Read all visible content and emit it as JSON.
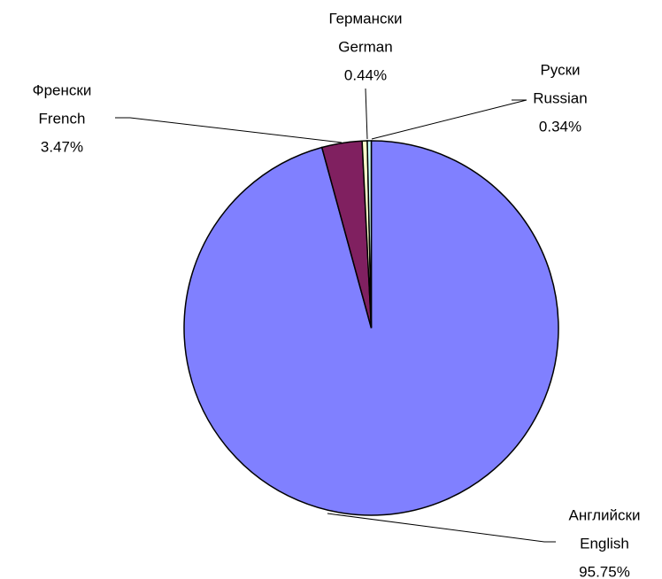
{
  "chart_data": {
    "type": "pie",
    "categories": [
      "English",
      "French",
      "German",
      "Russian"
    ],
    "local_names": [
      "Английски",
      "Френски",
      "Германски",
      "Руски"
    ],
    "values": [
      95.75,
      3.47,
      0.44,
      0.34
    ],
    "value_labels": [
      "95.75%",
      "3.47%",
      "0.44%",
      "0.34%"
    ],
    "colors": [
      "#8080ff",
      "#802060",
      "#ffffcc",
      "#ccffff"
    ]
  }
}
